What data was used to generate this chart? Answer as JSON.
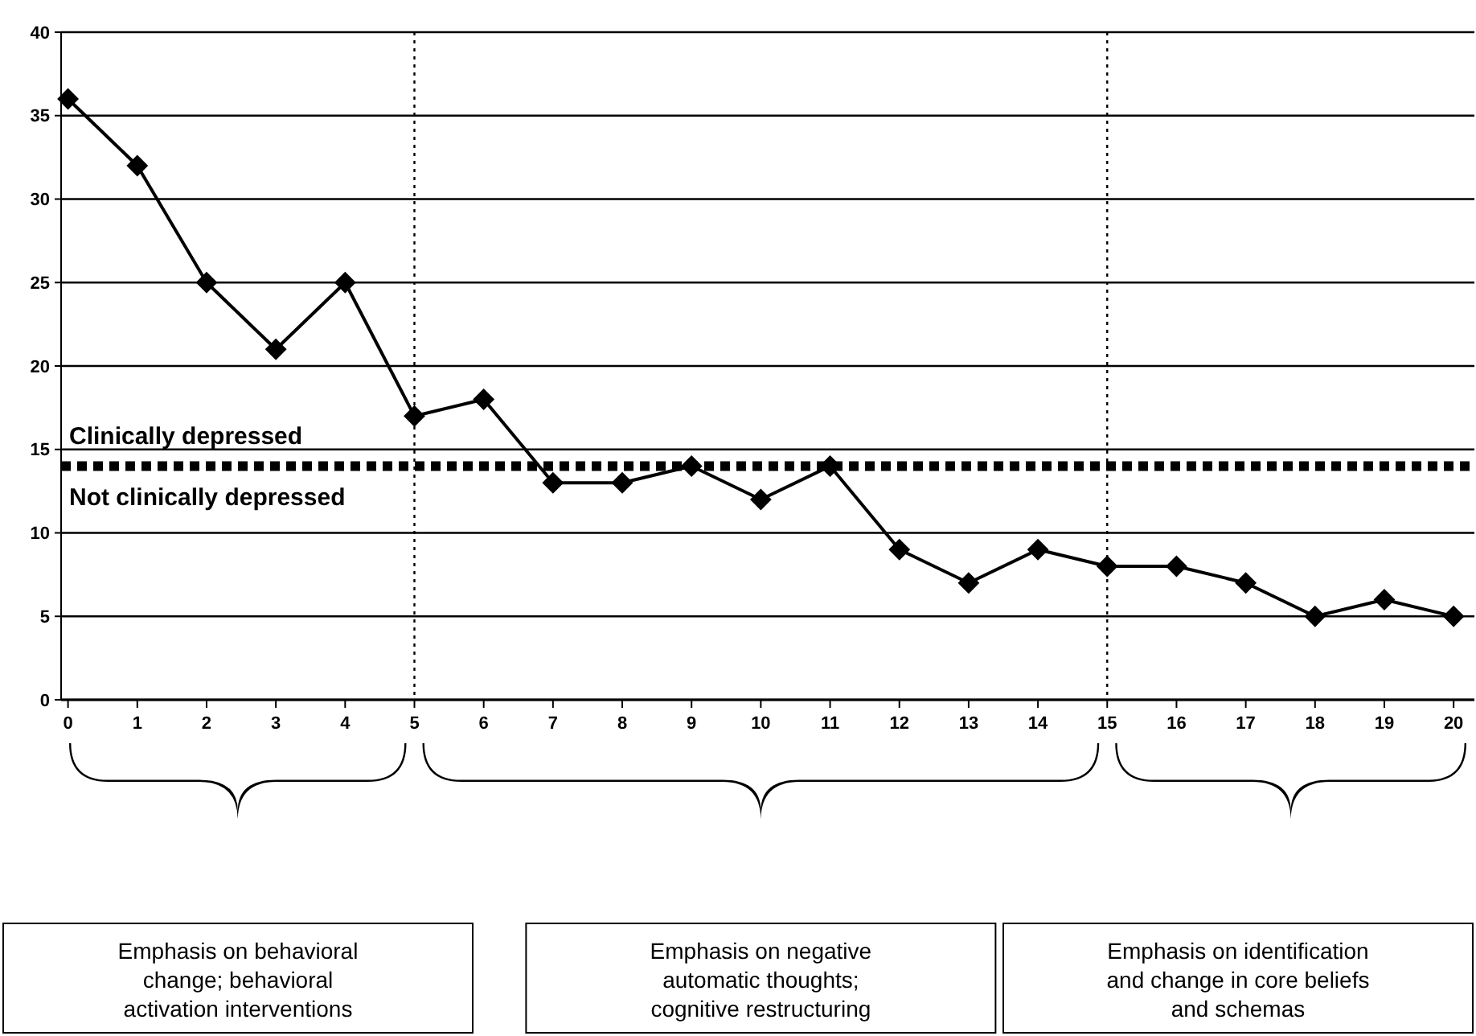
{
  "chart_data": {
    "type": "line",
    "x": [
      0,
      1,
      2,
      3,
      4,
      5,
      6,
      7,
      8,
      9,
      10,
      11,
      12,
      13,
      14,
      15,
      16,
      17,
      18,
      19,
      20
    ],
    "series": [
      {
        "color": "#000000",
        "values": [
          36,
          32,
          25,
          21,
          25,
          17,
          18,
          13,
          13,
          14,
          12,
          14,
          9,
          7,
          9,
          8,
          8,
          7,
          5,
          6,
          5
        ]
      }
    ],
    "xlim": [
      -0.1,
      20.3
    ],
    "xticks": [
      0,
      1,
      2,
      3,
      4,
      5,
      6,
      7,
      8,
      9,
      10,
      11,
      12,
      13,
      14,
      15,
      16,
      17,
      18,
      19,
      20
    ],
    "ylim": [
      0,
      40
    ],
    "yticks": [
      0,
      5,
      10,
      15,
      20,
      25,
      30,
      35,
      40
    ],
    "grid": "y",
    "marker": "diamond",
    "line_style": "solid",
    "ref_lines": [
      {
        "axis": "y",
        "value": 14,
        "line_style": "dotted"
      },
      {
        "axis": "x",
        "value": 5,
        "line_style": "dotted"
      },
      {
        "axis": "x",
        "value": 15,
        "line_style": "dotted"
      }
    ],
    "annotations": [
      "Clinically depressed",
      "Not clinically depressed",
      "Emphasis on behavioral\nchange; behavioral\nactivation interventions",
      "Emphasis on negative\nautomatic thoughts;\ncognitive restructuring",
      "Emphasis on identification\nand change in core beliefs\nand schemas"
    ]
  }
}
